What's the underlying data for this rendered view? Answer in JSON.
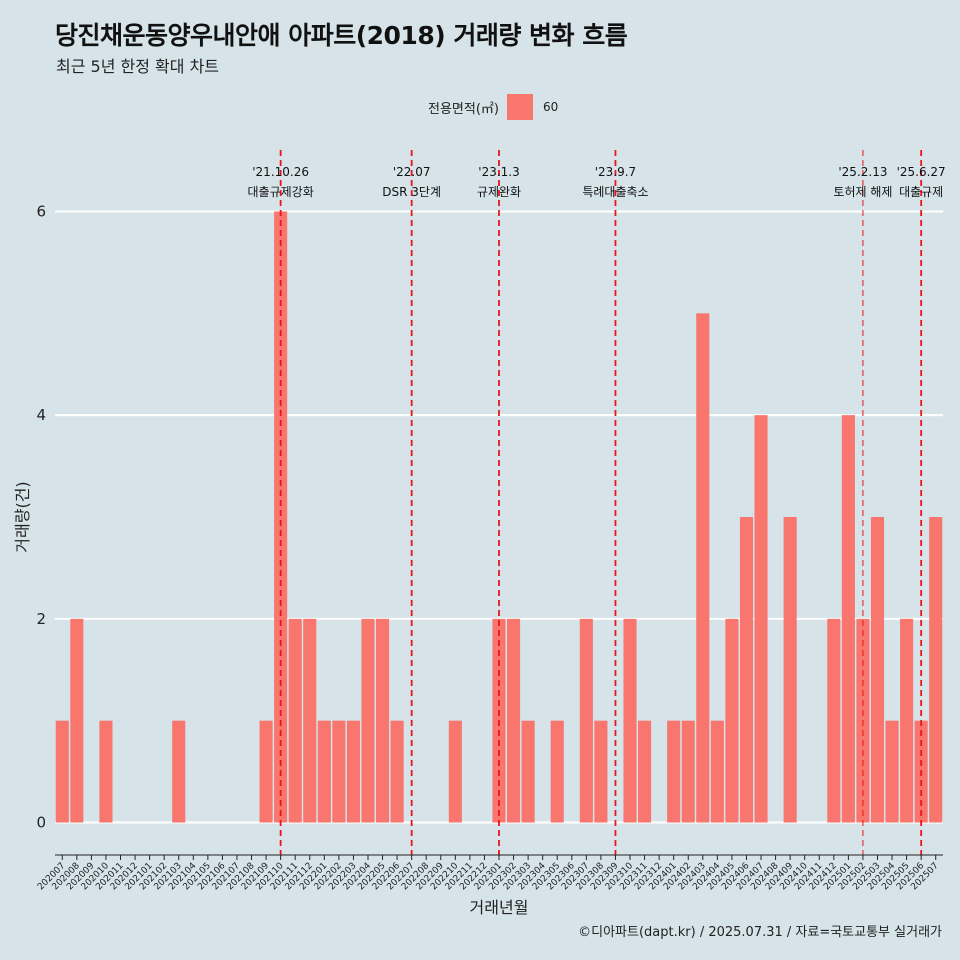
{
  "chart_data": {
    "type": "bar",
    "title": "당진채운동양우내안애 아파트(2018) 거래량 변화 흐름",
    "subtitle": "최근 5년 한정 확대 차트",
    "xlabel": "거래년월",
    "ylabel": "거래량(건)",
    "ylim": [
      0,
      6
    ],
    "yticks": [
      0,
      2,
      4,
      6
    ],
    "grid": true,
    "legend": {
      "title": "전용면적(㎡)",
      "entries": [
        "60"
      ],
      "placement": "top",
      "color": "#f8766d"
    },
    "categories": [
      "202007",
      "202008",
      "202009",
      "202010",
      "202011",
      "202012",
      "202101",
      "202102",
      "202103",
      "202104",
      "202105",
      "202106",
      "202107",
      "202108",
      "202109",
      "202110",
      "202111",
      "202112",
      "202201",
      "202202",
      "202203",
      "202204",
      "202205",
      "202206",
      "202207",
      "202208",
      "202209",
      "202210",
      "202211",
      "202212",
      "202301",
      "202302",
      "202303",
      "202304",
      "202305",
      "202306",
      "202307",
      "202308",
      "202309",
      "202310",
      "202311",
      "202312",
      "202401",
      "202402",
      "202403",
      "202404",
      "202405",
      "202406",
      "202407",
      "202408",
      "202409",
      "202410",
      "202411",
      "202412",
      "202501",
      "202502",
      "202503",
      "202504",
      "202505",
      "202506",
      "202507"
    ],
    "series": [
      {
        "values": [
          1,
          2,
          0,
          1,
          0,
          0,
          0,
          0,
          1,
          0,
          0,
          0,
          0,
          0,
          1,
          6,
          2,
          2,
          1,
          1,
          1,
          2,
          2,
          1,
          0,
          0,
          0,
          1,
          0,
          0,
          2,
          2,
          1,
          0,
          1,
          0,
          2,
          1,
          0,
          2,
          1,
          0,
          1,
          1,
          5,
          1,
          2,
          3,
          4,
          0,
          3,
          0,
          0,
          2,
          4,
          2,
          3,
          1,
          2,
          1,
          3
        ]
      }
    ],
    "annotations": [
      {
        "x": "202110",
        "date": "'21.10.26",
        "text": "대출규제강화",
        "emphasis": "strong"
      },
      {
        "x": "202207",
        "date": "'22.07",
        "text": "DSR 3단계",
        "emphasis": "strong"
      },
      {
        "x": "202301",
        "date": "'23.1.3",
        "text": "규제완화",
        "emphasis": "strong"
      },
      {
        "x": "202309",
        "date": "'23.9.7",
        "text": "특례대출축소",
        "emphasis": "strong"
      },
      {
        "x": "202502",
        "date": "'25.2.13",
        "text": "토허제 해제",
        "emphasis": "light"
      },
      {
        "x": "202506",
        "date": "'25.6.27",
        "text": "대출규제",
        "emphasis": "strong"
      }
    ],
    "colors": {
      "bar": "#f8766d",
      "vline": "#e8161a",
      "panel": "#d6e4ea",
      "grid": "#ffffff"
    }
  },
  "caption": "©디아파트(dapt.kr) / 2025.07.31 / 자료=국토교통부 실거래가"
}
